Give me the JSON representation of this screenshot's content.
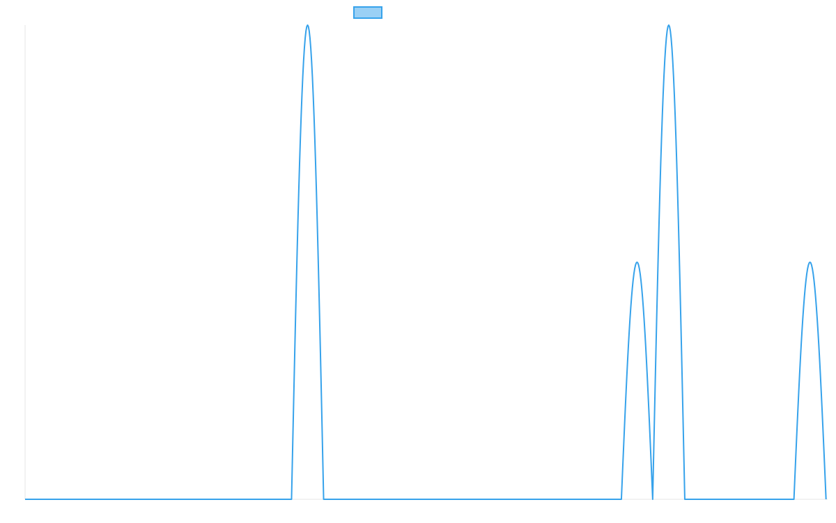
{
  "chart_data": {
    "type": "line",
    "title": "",
    "xlabel": "",
    "ylabel": "",
    "grid": false,
    "legend": {
      "placement": "top-center",
      "entries": [
        {
          "label": "",
          "color": "#36a2eb",
          "fill": "#9ad0f5"
        }
      ]
    },
    "xlim": [
      0,
      100
    ],
    "ylim": [
      0,
      1
    ],
    "series": [
      {
        "color": "#36a2eb",
        "pulses": [
          {
            "start": 33.2,
            "end": 37.2,
            "peak": 1.0
          },
          {
            "start": 74.3,
            "end": 78.2,
            "peak": 0.5
          },
          {
            "start": 78.2,
            "end": 82.2,
            "peak": 1.0
          },
          {
            "start": 95.8,
            "end": 99.8,
            "peak": 0.5
          }
        ]
      }
    ]
  }
}
